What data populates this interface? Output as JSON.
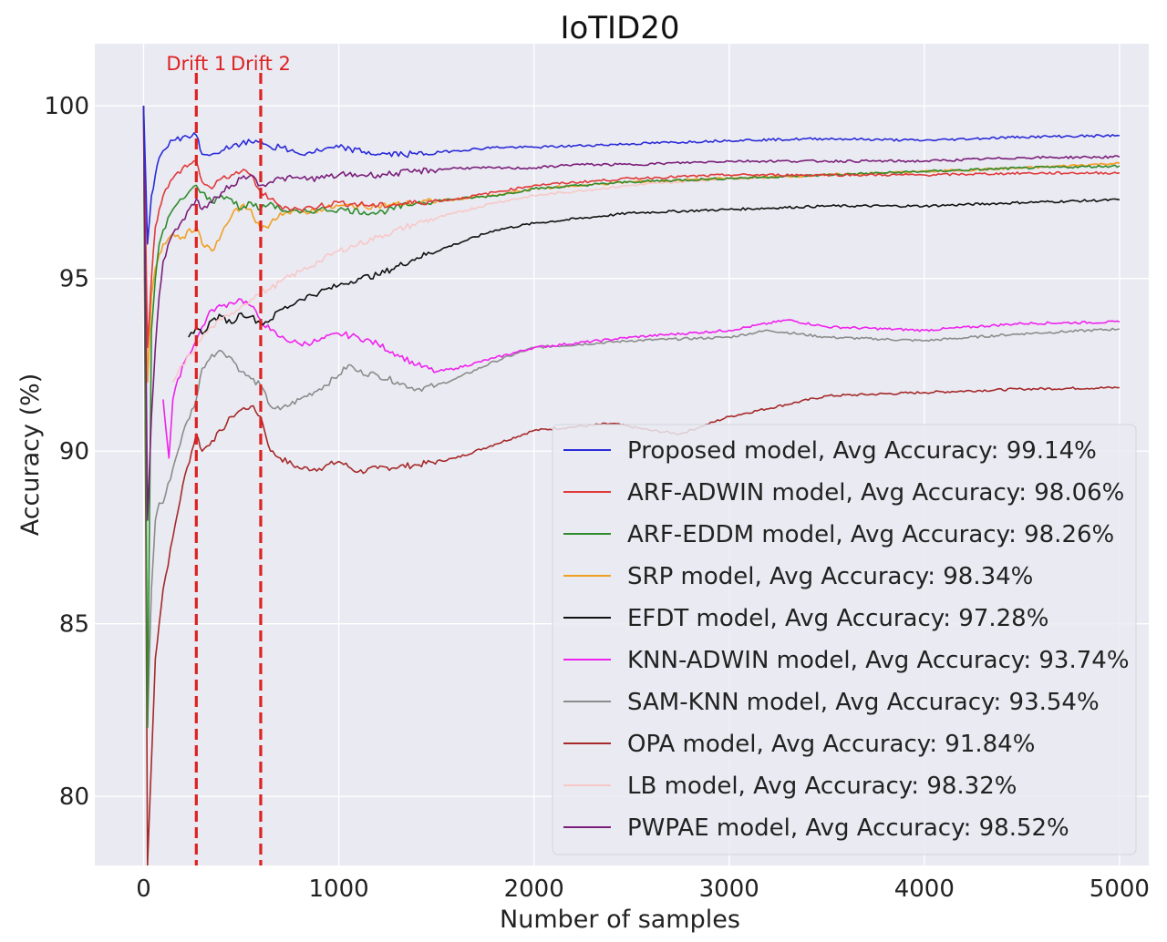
{
  "chart_data": {
    "type": "line",
    "title": "IoTID20",
    "xlabel": "Number of samples",
    "ylabel": "Accuracy (%)",
    "xlim": [
      -250,
      5150
    ],
    "ylim": [
      78,
      101.8
    ],
    "xticks": [
      0,
      1000,
      2000,
      3000,
      4000,
      5000
    ],
    "yticks": [
      80,
      85,
      90,
      95,
      100
    ],
    "grid": true,
    "legend_position": "lower-right",
    "drifts": [
      {
        "label": "Drift 1",
        "x": 270
      },
      {
        "label": "Drift 2",
        "x": 600
      }
    ],
    "series": [
      {
        "name": "Proposed model, Avg Accuracy: 99.14%",
        "color": "#2b2bd9",
        "x": [
          0,
          20,
          40,
          60,
          80,
          100,
          150,
          200,
          270,
          300,
          350,
          400,
          450,
          500,
          550,
          600,
          650,
          700,
          750,
          800,
          900,
          1000,
          1200,
          1400,
          1600,
          1800,
          2000,
          2500,
          3000,
          3500,
          4000,
          4500,
          5000
        ],
        "y": [
          100,
          96.0,
          97.4,
          98.0,
          98.5,
          98.7,
          99.0,
          99.1,
          99.15,
          98.6,
          98.6,
          98.7,
          98.8,
          98.9,
          98.95,
          99.0,
          98.8,
          98.8,
          98.7,
          98.6,
          98.7,
          98.8,
          98.6,
          98.6,
          98.7,
          98.8,
          98.8,
          98.9,
          99.0,
          99.05,
          99.0,
          99.1,
          99.14
        ]
      },
      {
        "name": "ARF-ADWIN model, Avg Accuracy: 98.06%",
        "color": "#e03a3a",
        "x": [
          0,
          20,
          40,
          60,
          80,
          100,
          150,
          200,
          270,
          300,
          350,
          400,
          450,
          500,
          550,
          600,
          650,
          700,
          800,
          900,
          1000,
          1200,
          1400,
          1600,
          1800,
          2000,
          2500,
          3000,
          3500,
          4000,
          4500,
          5000
        ],
        "y": [
          100,
          93.0,
          95.0,
          96.5,
          97.0,
          97.4,
          97.9,
          98.2,
          98.4,
          97.8,
          97.6,
          97.9,
          98.0,
          98.1,
          98.0,
          97.5,
          97.3,
          97.1,
          97.0,
          97.1,
          97.2,
          97.1,
          97.2,
          97.3,
          97.5,
          97.7,
          97.9,
          98.0,
          98.0,
          98.0,
          98.05,
          98.06
        ]
      },
      {
        "name": "ARF-EDDM model, Avg Accuracy: 98.26%",
        "color": "#2e8b2e",
        "x": [
          0,
          20,
          40,
          60,
          80,
          100,
          150,
          200,
          270,
          300,
          350,
          400,
          450,
          500,
          550,
          600,
          650,
          700,
          800,
          900,
          1000,
          1200,
          1400,
          1600,
          1800,
          2000,
          2500,
          3000,
          3500,
          4000,
          4500,
          5000
        ],
        "y": [
          100,
          82.0,
          93.5,
          95.0,
          96.0,
          96.4,
          97.0,
          97.3,
          97.7,
          97.5,
          97.2,
          97.4,
          97.3,
          97.0,
          97.2,
          97.0,
          97.2,
          97.0,
          96.9,
          97.0,
          97.0,
          96.9,
          97.2,
          97.3,
          97.4,
          97.6,
          97.8,
          97.9,
          98.0,
          98.1,
          98.2,
          98.26
        ]
      },
      {
        "name": "SRP model, Avg Accuracy: 98.34%",
        "color": "#f0a020",
        "x": [
          0,
          20,
          40,
          60,
          80,
          100,
          150,
          200,
          270,
          300,
          350,
          400,
          450,
          500,
          550,
          600,
          650,
          700,
          800,
          900,
          1000,
          1200,
          1400,
          1600,
          1800,
          2000,
          2500,
          3000,
          3500,
          4000,
          4500,
          5000
        ],
        "y": [
          100,
          92.0,
          94.5,
          95.3,
          95.7,
          96.0,
          96.3,
          96.2,
          96.5,
          96.0,
          95.8,
          96.3,
          96.8,
          97.1,
          97.0,
          96.4,
          96.6,
          96.9,
          96.9,
          97.0,
          97.1,
          97.1,
          97.2,
          97.3,
          97.4,
          97.6,
          97.8,
          97.9,
          98.0,
          98.1,
          98.2,
          98.34
        ]
      },
      {
        "name": "EFDT model, Avg Accuracy: 97.28%",
        "color": "#111111",
        "x": [
          230,
          270,
          300,
          350,
          400,
          450,
          500,
          550,
          600,
          650,
          700,
          750,
          800,
          900,
          1000,
          1100,
          1200,
          1400,
          1600,
          1800,
          2000,
          2500,
          3000,
          3500,
          4000,
          4500,
          5000
        ],
        "y": [
          93.3,
          93.6,
          93.4,
          93.8,
          93.9,
          93.7,
          94.0,
          93.9,
          93.7,
          93.8,
          94.1,
          94.2,
          94.4,
          94.6,
          94.8,
          95.0,
          95.1,
          95.6,
          96.0,
          96.4,
          96.6,
          96.9,
          97.0,
          97.1,
          97.1,
          97.2,
          97.28
        ]
      },
      {
        "name": "KNN-ADWIN model, Avg Accuracy: 93.74%",
        "color": "#ee22ee",
        "x": [
          100,
          130,
          150,
          200,
          270,
          300,
          350,
          400,
          450,
          500,
          550,
          600,
          650,
          700,
          800,
          900,
          1000,
          1100,
          1200,
          1300,
          1400,
          1500,
          1600,
          1800,
          2000,
          2500,
          3000,
          3300,
          3500,
          4000,
          4500,
          5000
        ],
        "y": [
          91.5,
          89.8,
          91.5,
          92.5,
          93.2,
          93.6,
          94.1,
          94.2,
          94.3,
          94.4,
          94.2,
          93.8,
          93.5,
          93.3,
          93.1,
          93.2,
          93.4,
          93.3,
          93.1,
          92.8,
          92.5,
          92.3,
          92.4,
          92.7,
          93.0,
          93.3,
          93.5,
          93.8,
          93.6,
          93.5,
          93.7,
          93.74
        ]
      },
      {
        "name": "SAM-KNN model, Avg Accuracy: 93.54%",
        "color": "#8c8c8c",
        "x": [
          0,
          20,
          40,
          60,
          80,
          100,
          150,
          200,
          270,
          300,
          350,
          400,
          450,
          500,
          550,
          600,
          650,
          700,
          800,
          900,
          1000,
          1050,
          1100,
          1200,
          1300,
          1400,
          1500,
          1600,
          1800,
          2000,
          2500,
          3000,
          3200,
          3500,
          4000,
          4500,
          5000
        ],
        "y": [
          100,
          82.0,
          86.0,
          88.0,
          88.5,
          88.5,
          89.5,
          90.5,
          91.5,
          92.4,
          92.8,
          92.9,
          92.7,
          92.3,
          92.1,
          91.9,
          91.3,
          91.2,
          91.5,
          91.8,
          92.2,
          92.5,
          92.3,
          92.2,
          92.0,
          91.8,
          91.9,
          92.1,
          92.6,
          93.0,
          93.2,
          93.3,
          93.5,
          93.3,
          93.2,
          93.4,
          93.54
        ]
      },
      {
        "name": "OPA model, Avg Accuracy: 91.84%",
        "color": "#a52a2a",
        "x": [
          0,
          20,
          40,
          60,
          80,
          100,
          150,
          200,
          270,
          300,
          350,
          400,
          450,
          500,
          550,
          600,
          650,
          700,
          800,
          900,
          1000,
          1100,
          1200,
          1400,
          1600,
          1800,
          2000,
          2200,
          2400,
          2600,
          2750,
          3000,
          3500,
          4000,
          4500,
          5000
        ],
        "y": [
          100,
          78.0,
          81.0,
          84.0,
          85.0,
          86.0,
          87.5,
          89.0,
          90.5,
          90.0,
          90.3,
          90.6,
          91.0,
          91.2,
          91.3,
          91.0,
          90.0,
          89.8,
          89.5,
          89.5,
          89.7,
          89.4,
          89.5,
          89.6,
          89.8,
          90.2,
          90.6,
          90.7,
          90.8,
          90.6,
          90.5,
          91.0,
          91.6,
          91.7,
          91.8,
          91.84
        ]
      },
      {
        "name": "LB model, Avg Accuracy: 98.32%",
        "color": "#f8c8c8",
        "x": [
          150,
          200,
          270,
          300,
          350,
          400,
          450,
          500,
          550,
          600,
          650,
          700,
          800,
          900,
          1000,
          1100,
          1200,
          1400,
          1600,
          1800,
          2000,
          2500,
          3000,
          3500,
          4000,
          4500,
          5000
        ],
        "y": [
          92.0,
          92.5,
          93.0,
          93.3,
          93.6,
          93.8,
          94.0,
          94.2,
          94.4,
          94.6,
          94.7,
          94.9,
          95.2,
          95.5,
          95.8,
          96.0,
          96.2,
          96.6,
          96.9,
          97.2,
          97.4,
          97.7,
          97.9,
          98.0,
          98.1,
          98.2,
          98.32
        ]
      },
      {
        "name": "PWPAE model, Avg Accuracy: 98.52%",
        "color": "#7a1f7a",
        "x": [
          0,
          20,
          40,
          60,
          80,
          100,
          150,
          200,
          270,
          300,
          350,
          400,
          450,
          500,
          550,
          600,
          650,
          700,
          800,
          900,
          1000,
          1200,
          1400,
          1600,
          1800,
          2000,
          2200,
          2500,
          3000,
          3500,
          4000,
          4500,
          5000
        ],
        "y": [
          100,
          88.0,
          91.0,
          93.0,
          94.5,
          95.5,
          96.3,
          96.7,
          97.3,
          97.0,
          97.2,
          97.5,
          97.7,
          97.9,
          98.0,
          97.7,
          97.8,
          97.9,
          97.9,
          97.9,
          98.0,
          98.0,
          98.1,
          98.2,
          98.2,
          98.2,
          98.3,
          98.3,
          98.4,
          98.4,
          98.4,
          98.5,
          98.52
        ]
      }
    ]
  }
}
